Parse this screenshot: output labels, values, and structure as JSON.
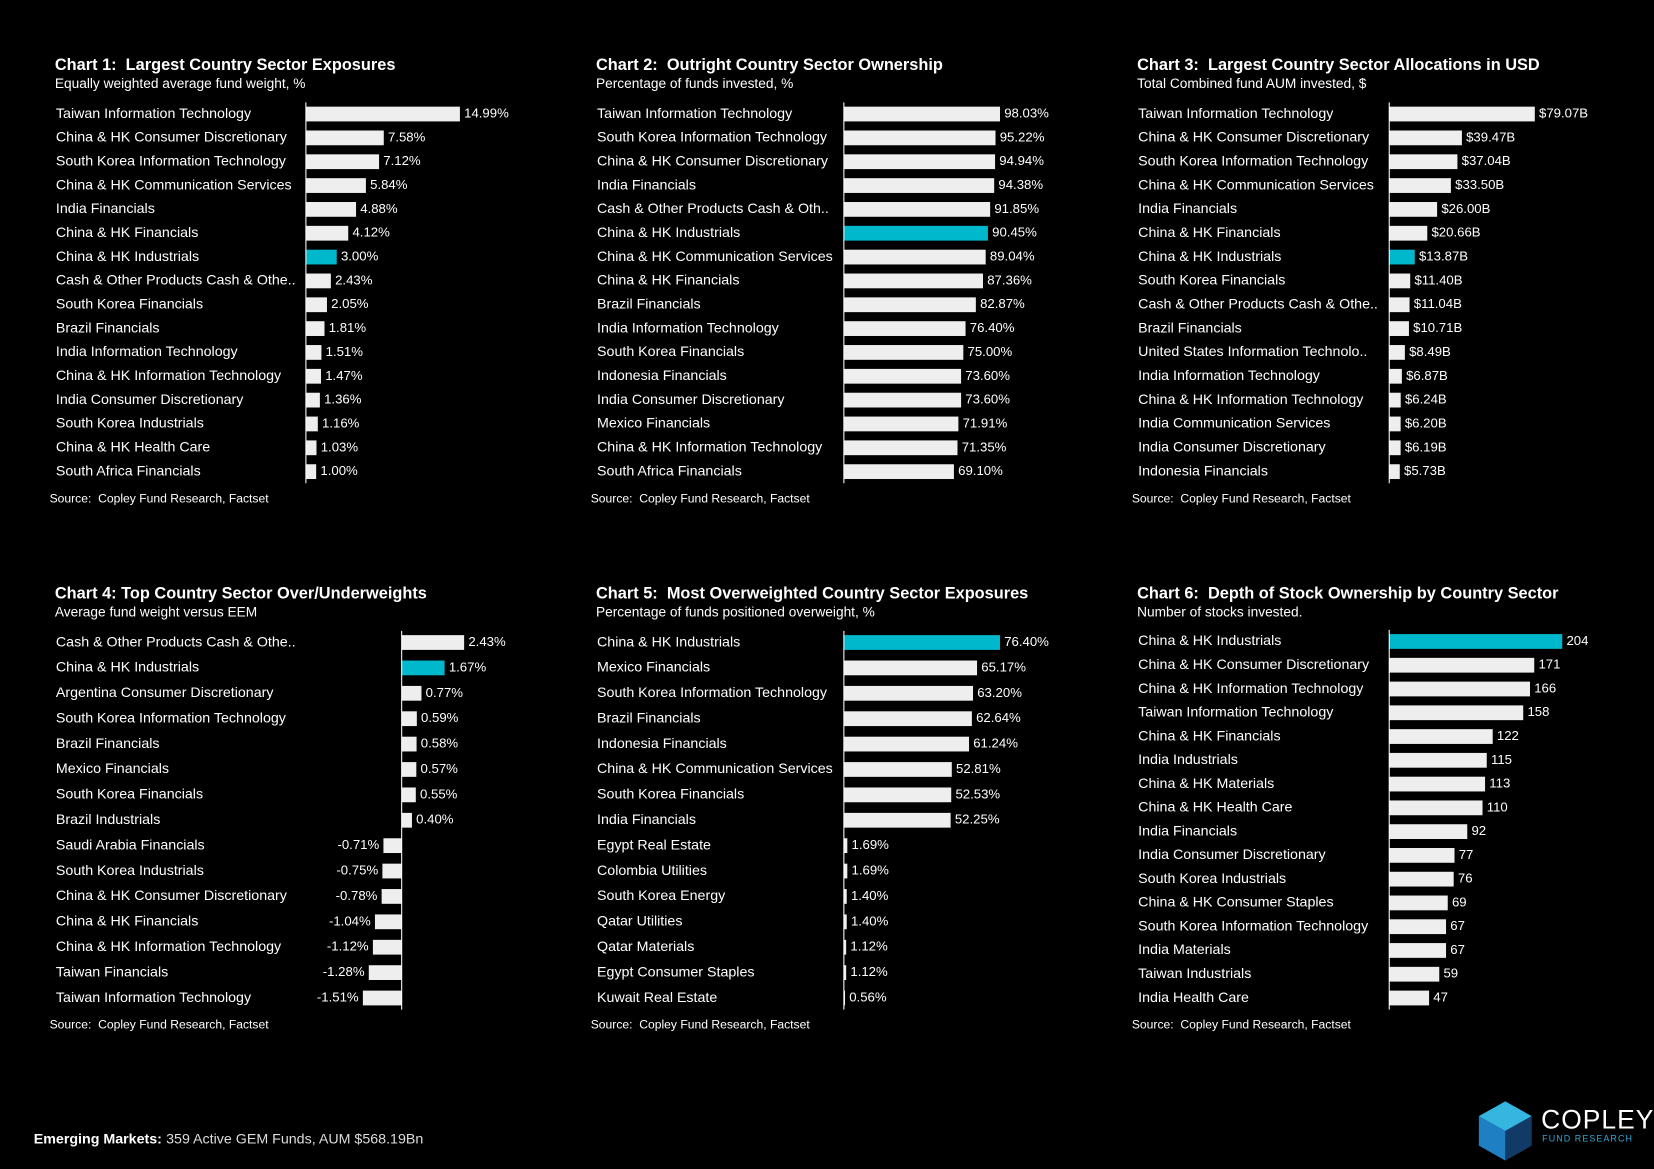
{
  "chart_data": [
    {
      "type": "bar",
      "orientation": "horizontal",
      "title": "Chart 1:  Largest Country Sector Exposures",
      "subtitle": "Equally weighted average fund weight, %",
      "source": "Source:  Copley Fund Research, Factset",
      "categories": [
        "Taiwan Information Technology",
        "China & HK Consumer Discretionary",
        "South Korea Information Technology",
        "China & HK Communication Services",
        "India Financials",
        "China & HK Financials",
        "China & HK Industrials",
        "Cash & Other Products Cash & Othe..",
        "South Korea Financials",
        "Brazil Financials",
        "India Information Technology",
        "China & HK Information Technology",
        "India Consumer Discretionary",
        "South Korea Industrials",
        "China & HK Health Care",
        "South Africa Financials"
      ],
      "values": [
        14.99,
        7.58,
        7.12,
        5.84,
        4.88,
        4.12,
        3.0,
        2.43,
        2.05,
        1.81,
        1.51,
        1.47,
        1.36,
        1.16,
        1.03,
        1.0
      ],
      "value_labels": [
        "14.99%",
        "7.58%",
        "7.12%",
        "5.84%",
        "4.88%",
        "4.12%",
        "3.00%",
        "2.43%",
        "2.05%",
        "1.81%",
        "1.51%",
        "1.47%",
        "1.36%",
        "1.16%",
        "1.03%",
        "1.00%"
      ],
      "colors": [
        "#eeeeee",
        "#eeeeee",
        "#eeeeee",
        "#eeeeee",
        "#eeeeee",
        "#eeeeee",
        "#00b8cc",
        "#eeeeee",
        "#eeeeee",
        "#eeeeee",
        "#eeeeee",
        "#eeeeee",
        "#eeeeee",
        "#eeeeee",
        "#eeeeee",
        "#eeeeee"
      ]
    },
    {
      "type": "bar",
      "orientation": "horizontal",
      "title": "Chart 2:  Outright Country Sector Ownership",
      "subtitle": "Percentage of funds invested, %",
      "source": "Source:  Copley Fund Research, Factset",
      "categories": [
        "Taiwan Information Technology",
        "South Korea Information Technology",
        "China & HK Consumer Discretionary",
        "India Financials",
        "Cash & Other Products Cash & Oth..",
        "China & HK Industrials",
        "China & HK Communication Services",
        "China & HK Financials",
        "Brazil Financials",
        "India Information Technology",
        "South Korea Financials",
        "Indonesia Financials",
        "India Consumer Discretionary",
        "Mexico Financials",
        "China & HK Information Technology",
        "South Africa Financials"
      ],
      "values": [
        98.03,
        95.22,
        94.94,
        94.38,
        91.85,
        90.45,
        89.04,
        87.36,
        82.87,
        76.4,
        75.0,
        73.6,
        73.6,
        71.91,
        71.35,
        69.1
      ],
      "value_labels": [
        "98.03%",
        "95.22%",
        "94.94%",
        "94.38%",
        "91.85%",
        "90.45%",
        "89.04%",
        "87.36%",
        "82.87%",
        "76.40%",
        "75.00%",
        "73.60%",
        "73.60%",
        "71.91%",
        "71.35%",
        "69.10%"
      ],
      "colors": [
        "#eeeeee",
        "#eeeeee",
        "#eeeeee",
        "#eeeeee",
        "#eeeeee",
        "#00b8cc",
        "#eeeeee",
        "#eeeeee",
        "#eeeeee",
        "#eeeeee",
        "#eeeeee",
        "#eeeeee",
        "#eeeeee",
        "#eeeeee",
        "#eeeeee",
        "#eeeeee"
      ]
    },
    {
      "type": "bar",
      "orientation": "horizontal",
      "title": "Chart 3:  Largest Country Sector Allocations in USD",
      "subtitle": "Total Combined fund AUM invested, $",
      "source": "Source:  Copley Fund Research, Factset",
      "categories": [
        "Taiwan Information Technology",
        "China & HK Consumer Discretionary",
        "South Korea Information Technology",
        "China & HK Communication Services",
        "India Financials",
        "China & HK Financials",
        "China & HK Industrials",
        "South Korea Financials",
        "Cash & Other Products Cash & Othe..",
        "Brazil Financials",
        "United States Information Technolo..",
        "India Information Technology",
        "China & HK Information Technology",
        "India Communication Services",
        "India Consumer Discretionary",
        "Indonesia Financials"
      ],
      "values": [
        79.07,
        39.47,
        37.04,
        33.5,
        26.0,
        20.66,
        13.87,
        11.4,
        11.04,
        10.71,
        8.49,
        6.87,
        6.24,
        6.2,
        6.19,
        5.73
      ],
      "value_labels": [
        "$79.07B",
        "$39.47B",
        "$37.04B",
        "$33.50B",
        "$26.00B",
        "$20.66B",
        "$13.87B",
        "$11.40B",
        "$11.04B",
        "$10.71B",
        "$8.49B",
        "$6.87B",
        "$6.24B",
        "$6.20B",
        "$6.19B",
        "$5.73B"
      ],
      "colors": [
        "#eeeeee",
        "#eeeeee",
        "#eeeeee",
        "#eeeeee",
        "#eeeeee",
        "#eeeeee",
        "#00b8cc",
        "#eeeeee",
        "#eeeeee",
        "#eeeeee",
        "#eeeeee",
        "#eeeeee",
        "#eeeeee",
        "#eeeeee",
        "#eeeeee",
        "#eeeeee"
      ]
    },
    {
      "type": "bar",
      "orientation": "horizontal",
      "title": "Chart 4: Top Country Sector Over/Underweights",
      "subtitle": "Average fund weight versus EEM",
      "source": "Source:  Copley Fund Research, Factset",
      "categories": [
        "Cash & Other Products Cash & Othe..",
        "China & HK Industrials",
        "Argentina Consumer Discretionary",
        "South Korea Information Technology",
        "Brazil Financials",
        "Mexico Financials",
        "South Korea Financials",
        "Brazil Industrials",
        "Saudi Arabia Financials",
        "South Korea Industrials",
        "China & HK Consumer Discretionary",
        "China & HK Financials",
        "China & HK Information Technology",
        "Taiwan Financials",
        "Taiwan Information Technology"
      ],
      "values": [
        2.43,
        1.67,
        0.77,
        0.59,
        0.58,
        0.57,
        0.55,
        0.4,
        -0.71,
        -0.75,
        -0.78,
        -1.04,
        -1.12,
        -1.28,
        -1.51
      ],
      "value_labels": [
        "2.43%",
        "1.67%",
        "0.77%",
        "0.59%",
        "0.58%",
        "0.57%",
        "0.55%",
        "0.40%",
        "-0.71%",
        "-0.75%",
        "-0.78%",
        "-1.04%",
        "-1.12%",
        "-1.28%",
        "-1.51%"
      ],
      "colors": [
        "#eeeeee",
        "#00b8cc",
        "#eeeeee",
        "#eeeeee",
        "#eeeeee",
        "#eeeeee",
        "#eeeeee",
        "#eeeeee",
        "#eeeeee",
        "#eeeeee",
        "#eeeeee",
        "#eeeeee",
        "#eeeeee",
        "#eeeeee",
        "#eeeeee"
      ]
    },
    {
      "type": "bar",
      "orientation": "horizontal",
      "title": "Chart 5:  Most Overweighted Country Sector Exposures",
      "subtitle": "Percentage of funds positioned overweight, %",
      "source": "Source:  Copley Fund Research, Factset",
      "categories": [
        "China & HK Industrials",
        "Mexico Financials",
        "South Korea Information Technology",
        "Brazil Financials",
        "Indonesia Financials",
        "China & HK Communication Services",
        "South Korea Financials",
        "India Financials",
        "Egypt Real Estate",
        "Colombia Utilities",
        "South Korea Energy",
        "Qatar Utilities",
        "Qatar Materials",
        "Egypt Consumer Staples",
        "Kuwait Real Estate"
      ],
      "values": [
        76.4,
        65.17,
        63.2,
        62.64,
        61.24,
        52.81,
        52.53,
        52.25,
        1.69,
        1.69,
        1.4,
        1.4,
        1.12,
        1.12,
        0.56
      ],
      "value_labels": [
        "76.40%",
        "65.17%",
        "63.20%",
        "62.64%",
        "61.24%",
        "52.81%",
        "52.53%",
        "52.25%",
        "1.69%",
        "1.69%",
        "1.40%",
        "1.40%",
        "1.12%",
        "1.12%",
        "0.56%"
      ],
      "colors": [
        "#00b8cc",
        "#eeeeee",
        "#eeeeee",
        "#eeeeee",
        "#eeeeee",
        "#eeeeee",
        "#eeeeee",
        "#eeeeee",
        "#eeeeee",
        "#eeeeee",
        "#eeeeee",
        "#eeeeee",
        "#eeeeee",
        "#eeeeee",
        "#eeeeee"
      ]
    },
    {
      "type": "bar",
      "orientation": "horizontal",
      "title": "Chart 6:  Depth of Stock Ownership by Country Sector",
      "subtitle": "Number of stocks invested.",
      "source": "Source:  Copley Fund Research, Factset",
      "categories": [
        "China & HK Industrials",
        "China & HK Consumer Discretionary",
        "China & HK Information Technology",
        "Taiwan Information Technology",
        "China & HK Financials",
        "India Industrials",
        "China & HK Materials",
        "China & HK Health Care",
        "India Financials",
        "India Consumer Discretionary",
        "South Korea Industrials",
        "China & HK Consumer Staples",
        "South Korea Information Technology",
        "India Materials",
        "Taiwan Industrials",
        "India Health Care"
      ],
      "values": [
        204,
        171,
        166,
        158,
        122,
        115,
        113,
        110,
        92,
        77,
        76,
        69,
        67,
        67,
        59,
        47
      ],
      "colors": [
        "#00b8cc",
        "#eeeeee",
        "#eeeeee",
        "#eeeeee",
        "#eeeeee",
        "#eeeeee",
        "#eeeeee",
        "#eeeeee",
        "#eeeeee",
        "#eeeeee",
        "#eeeeee",
        "#eeeeee",
        "#eeeeee",
        "#eeeeee",
        "#eeeeee",
        "#eeeeee"
      ]
    }
  ],
  "footer": {
    "label": "Emerging Markets:",
    "text": "359 Active GEM Funds, AUM $568.19Bn"
  },
  "logo": {
    "name": "COPLEY",
    "tagline": "FUND RESEARCH"
  }
}
